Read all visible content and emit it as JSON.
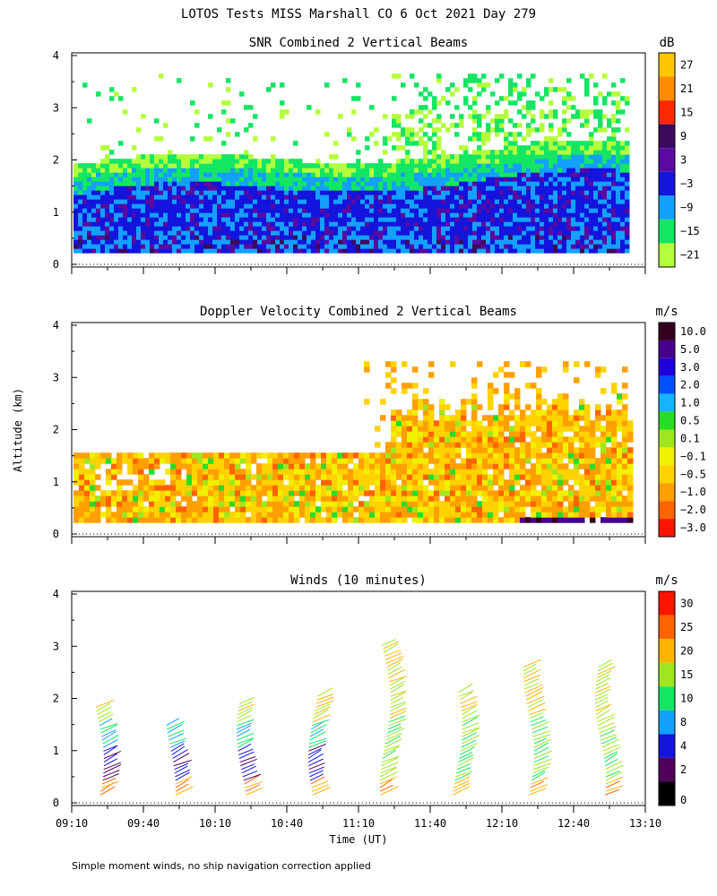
{
  "figure": {
    "title": "LOTOS Tests MISS Marshall CO   6 Oct 2021 Day 279",
    "ylabel": "Altitude (km)",
    "xlabel": "Time (UT)",
    "footnote": "Simple moment winds, no ship navigation correction applied",
    "x_ticks": [
      "09:10",
      "09:40",
      "10:10",
      "10:40",
      "11:10",
      "11:40",
      "12:10",
      "12:40",
      "13:10"
    ]
  },
  "chart_data": [
    {
      "type": "heatmap",
      "title": "SNR Combined 2 Vertical Beams",
      "ylabel": "Altitude (km)",
      "x_range": [
        "09:10",
        "13:10"
      ],
      "ylim": [
        0,
        4
      ],
      "y_ticks": [
        "0",
        "1",
        "2",
        "3",
        "4"
      ],
      "colorbar": {
        "unit": "dB",
        "labels": [
          "27",
          "21",
          "15",
          "9",
          "3",
          "−3",
          "−9",
          "−15",
          "−21"
        ],
        "colors": [
          "#ffc800",
          "#ff8c00",
          "#ff2800",
          "#3c0a5a",
          "#5a0aa0",
          "#1414dc",
          "#14a0ff",
          "#14e664",
          "#b4ff3c"
        ]
      },
      "description_levels_km": {
        "strong_layer_top": 1.7,
        "sparse_echo_top": 3.7
      }
    },
    {
      "type": "heatmap",
      "title": "Doppler Velocity Combined 2 Vertical Beams",
      "ylabel": "Altitude (km)",
      "x_range": [
        "09:10",
        "13:10"
      ],
      "ylim": [
        0,
        4
      ],
      "y_ticks": [
        "0",
        "1",
        "2",
        "3",
        "4"
      ],
      "colorbar": {
        "unit": "m/s",
        "labels": [
          "10.0",
          "5.0",
          "3.0",
          "2.0",
          "1.0",
          "0.5",
          "0.1",
          "−0.1",
          "−0.5",
          "−1.0",
          "−2.0",
          "−3.0"
        ],
        "colors": [
          "#32001e",
          "#46008c",
          "#1e00dc",
          "#0050ff",
          "#14b4ff",
          "#28dc28",
          "#a0e61e",
          "#f0f000",
          "#ffd200",
          "#ffa000",
          "#ff6400",
          "#ff1400"
        ]
      }
    },
    {
      "type": "scatter",
      "title": "Winds (10 minutes)",
      "ylabel": "Altitude (km)",
      "x_range": [
        "09:10",
        "13:10"
      ],
      "ylim": [
        0,
        4
      ],
      "y_ticks": [
        "0",
        "1",
        "2",
        "3",
        "4"
      ],
      "colorbar": {
        "unit": "m/s",
        "labels": [
          "30",
          "25",
          "20",
          "15",
          "10",
          "8",
          "4",
          "2",
          "0"
        ],
        "colors": [
          "#ff1400",
          "#ff6400",
          "#ffb400",
          "#a0e61e",
          "#14e664",
          "#14a0ff",
          "#1414dc",
          "#50005a",
          "#000000"
        ]
      },
      "profiles": [
        {
          "time": "09:25",
          "top_km": 1.85
        },
        {
          "time": "09:55",
          "top_km": 1.55
        },
        {
          "time": "10:25",
          "top_km": 1.95
        },
        {
          "time": "10:55",
          "top_km": 2.1
        },
        {
          "time": "11:25",
          "top_km": 3.05
        },
        {
          "time": "11:55",
          "top_km": 2.15
        },
        {
          "time": "12:25",
          "top_km": 2.6
        },
        {
          "time": "12:55",
          "top_km": 2.6
        }
      ]
    }
  ]
}
